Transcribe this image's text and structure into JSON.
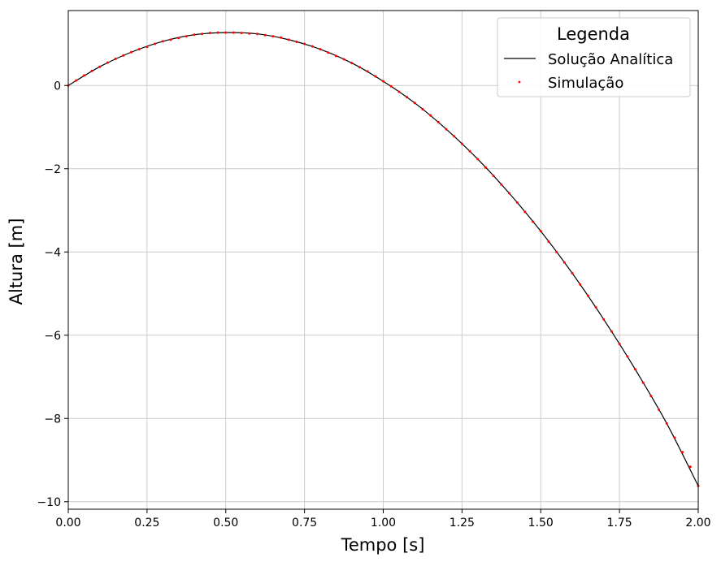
{
  "chart_data": {
    "type": "line",
    "xlabel": "Tempo [s]",
    "ylabel": "Altura [m]",
    "xlim": [
      0,
      2
    ],
    "ylim": [
      -10.18,
      1.8
    ],
    "grid": true,
    "legend": {
      "title": "Legenda",
      "placement": "top-right",
      "entries": [
        "Solução Analítica",
        "Simulação"
      ]
    },
    "x_ticks": [
      0,
      0.25,
      0.5,
      0.75,
      1.0,
      1.25,
      1.5,
      1.75,
      2.0
    ],
    "x_tick_labels": [
      "0.00",
      "0.25",
      "0.50",
      "0.75",
      "1.00",
      "1.25",
      "1.50",
      "1.75",
      "2.00"
    ],
    "y_ticks": [
      0,
      -2,
      -4,
      -6,
      -8,
      -10
    ],
    "y_tick_labels": [
      "0",
      "−2",
      "−4",
      "−6",
      "−8",
      "−10"
    ],
    "series": [
      {
        "name": "Solução Analítica",
        "style": "line",
        "color": "#000000",
        "x": [
          0,
          0.1,
          0.2,
          0.3,
          0.4,
          0.5,
          0.6,
          0.7,
          0.8,
          0.9,
          1.0,
          1.1,
          1.2,
          1.3,
          1.4,
          1.5,
          1.6,
          1.7,
          1.8,
          1.9,
          2.0
        ],
        "y": [
          0,
          0.45,
          0.8,
          1.06,
          1.22,
          1.27,
          1.24,
          1.1,
          0.87,
          0.54,
          0.1,
          -0.42,
          -1.05,
          -1.77,
          -2.59,
          -3.5,
          -4.51,
          -5.62,
          -6.82,
          -8.12,
          -9.62
        ]
      },
      {
        "name": "Simulação",
        "style": "points",
        "color": "#ff0000",
        "x": [
          0,
          0.025,
          0.05,
          0.075,
          0.1,
          0.125,
          0.15,
          0.175,
          0.2,
          0.225,
          0.25,
          0.275,
          0.3,
          0.325,
          0.35,
          0.375,
          0.4,
          0.425,
          0.45,
          0.475,
          0.5,
          0.525,
          0.55,
          0.575,
          0.6,
          0.625,
          0.65,
          0.675,
          0.7,
          0.725,
          0.75,
          0.775,
          0.8,
          0.825,
          0.85,
          0.875,
          0.9,
          0.925,
          0.95,
          0.975,
          1.0,
          1.025,
          1.05,
          1.075,
          1.1,
          1.125,
          1.15,
          1.175,
          1.2,
          1.225,
          1.25,
          1.275,
          1.3,
          1.325,
          1.35,
          1.375,
          1.4,
          1.425,
          1.45,
          1.475,
          1.5,
          1.525,
          1.55,
          1.575,
          1.6,
          1.625,
          1.65,
          1.675,
          1.7,
          1.725,
          1.75,
          1.775,
          1.8,
          1.825,
          1.85,
          1.875,
          1.9,
          1.925,
          1.95,
          1.975,
          2.0
        ],
        "y": [
          0.0,
          0.12,
          0.24,
          0.35,
          0.45,
          0.55,
          0.64,
          0.72,
          0.8,
          0.87,
          0.93,
          1.0,
          1.06,
          1.1,
          1.14,
          1.18,
          1.22,
          1.24,
          1.26,
          1.27,
          1.27,
          1.27,
          1.26,
          1.25,
          1.24,
          1.21,
          1.18,
          1.15,
          1.1,
          1.05,
          1.0,
          0.94,
          0.87,
          0.79,
          0.71,
          0.63,
          0.54,
          0.44,
          0.34,
          0.22,
          0.1,
          -0.02,
          -0.15,
          -0.28,
          -0.42,
          -0.57,
          -0.72,
          -0.88,
          -1.05,
          -1.22,
          -1.4,
          -1.58,
          -1.77,
          -1.97,
          -2.17,
          -2.38,
          -2.59,
          -2.81,
          -3.04,
          -3.27,
          -3.5,
          -3.75,
          -4.0,
          -4.25,
          -4.51,
          -4.78,
          -5.05,
          -5.33,
          -5.62,
          -5.91,
          -6.21,
          -6.51,
          -6.82,
          -7.14,
          -7.46,
          -7.79,
          -8.12,
          -8.46,
          -8.81,
          -9.16,
          -9.62
        ]
      }
    ]
  }
}
